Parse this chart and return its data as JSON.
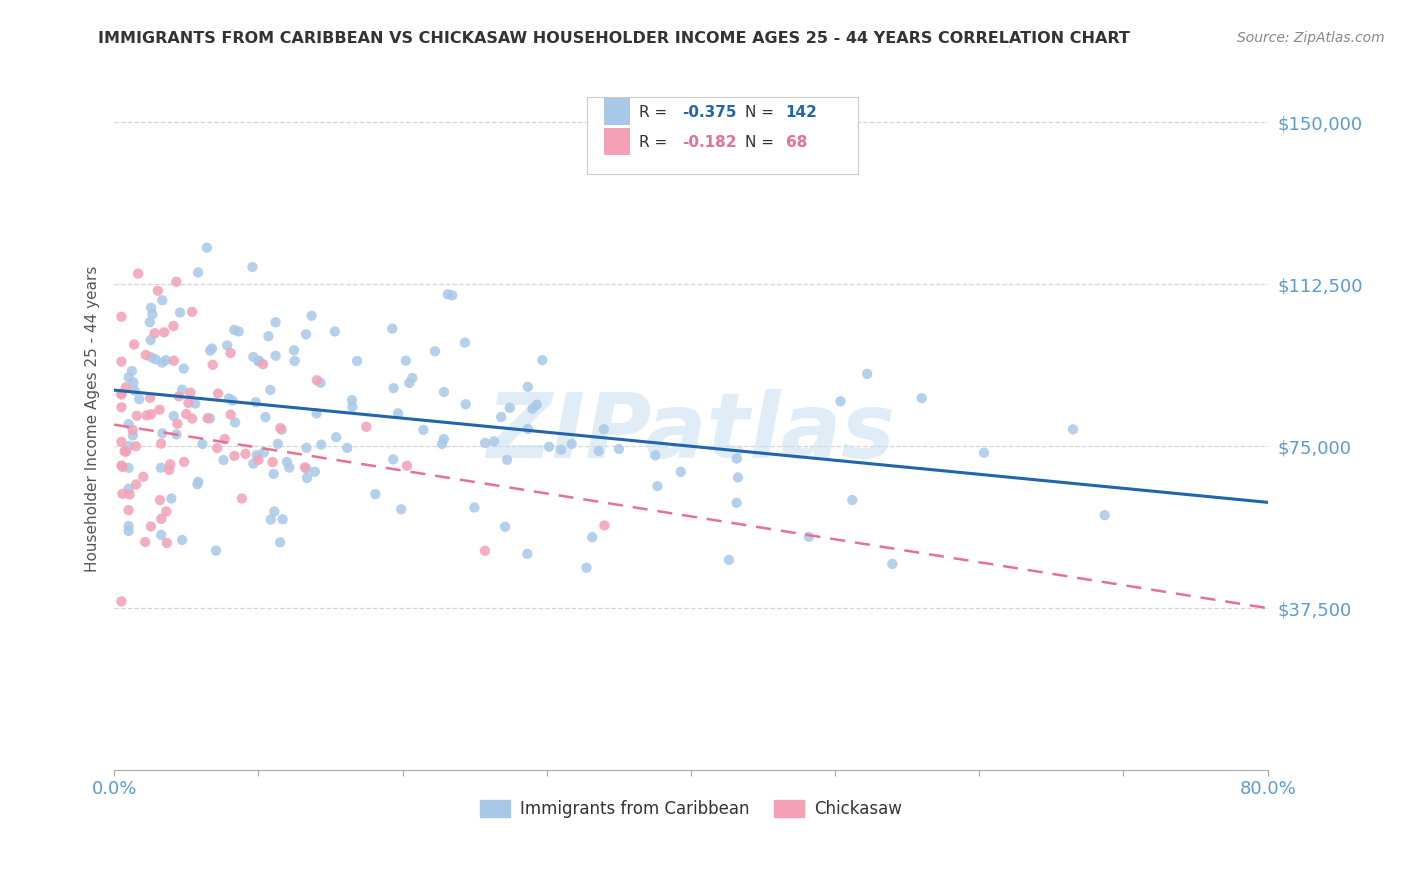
{
  "title": "IMMIGRANTS FROM CARIBBEAN VS CHICKASAW HOUSEHOLDER INCOME AGES 25 - 44 YEARS CORRELATION CHART",
  "source": "Source: ZipAtlas.com",
  "ylabel": "Householder Income Ages 25 - 44 years",
  "xlim": [
    0.0,
    0.8
  ],
  "ylim": [
    0,
    162500
  ],
  "yticks": [
    37500,
    75000,
    112500,
    150000
  ],
  "ytick_labels": [
    "$37,500",
    "$75,000",
    "$112,500",
    "$150,000"
  ],
  "xticks": [
    0.0,
    0.1,
    0.2,
    0.3,
    0.4,
    0.5,
    0.6,
    0.7,
    0.8
  ],
  "xtick_labels_show": [
    "0.0%",
    "",
    "",
    "",
    "",
    "",
    "",
    "",
    "80.0%"
  ],
  "blue_R": -0.375,
  "blue_N": 142,
  "pink_R": -0.182,
  "pink_N": 68,
  "blue_color": "#a8c8e8",
  "pink_color": "#f4a0b5",
  "blue_line_color": "#2166ac",
  "pink_line_color": "#e87090",
  "axis_label_color": "#5b9bd5",
  "watermark": "ZIPatlas",
  "grid_color": "#cccccc",
  "legend_label_blue": "Immigrants from Caribbean",
  "legend_label_pink": "Chickasaw",
  "blue_line_x0": 0.0,
  "blue_line_y0": 88000,
  "blue_line_x1": 0.8,
  "blue_line_y1": 62000,
  "pink_line_x0": 0.0,
  "pink_line_y0": 80000,
  "pink_line_x1": 0.8,
  "pink_line_y1": 37500
}
